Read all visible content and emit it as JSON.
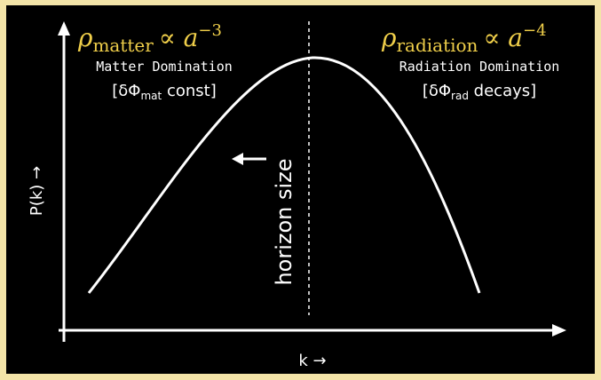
{
  "left": {
    "symbol": "ρ",
    "subscript": "matter",
    "relation": "∝ a",
    "exponent": "−3",
    "label": "Matter Domination",
    "note_pre": "[δΦ",
    "note_sub": "mat",
    "note_post": " const]"
  },
  "right": {
    "symbol": "ρ",
    "subscript": "radiation",
    "relation": "∝ a",
    "exponent": "−4",
    "label": "Radiation Domination",
    "note_pre": "[δΦ",
    "note_sub": "rad",
    "note_post": " decays]"
  },
  "horizon": "horizon size",
  "y_axis": "P(k) →",
  "x_axis": "k →"
}
